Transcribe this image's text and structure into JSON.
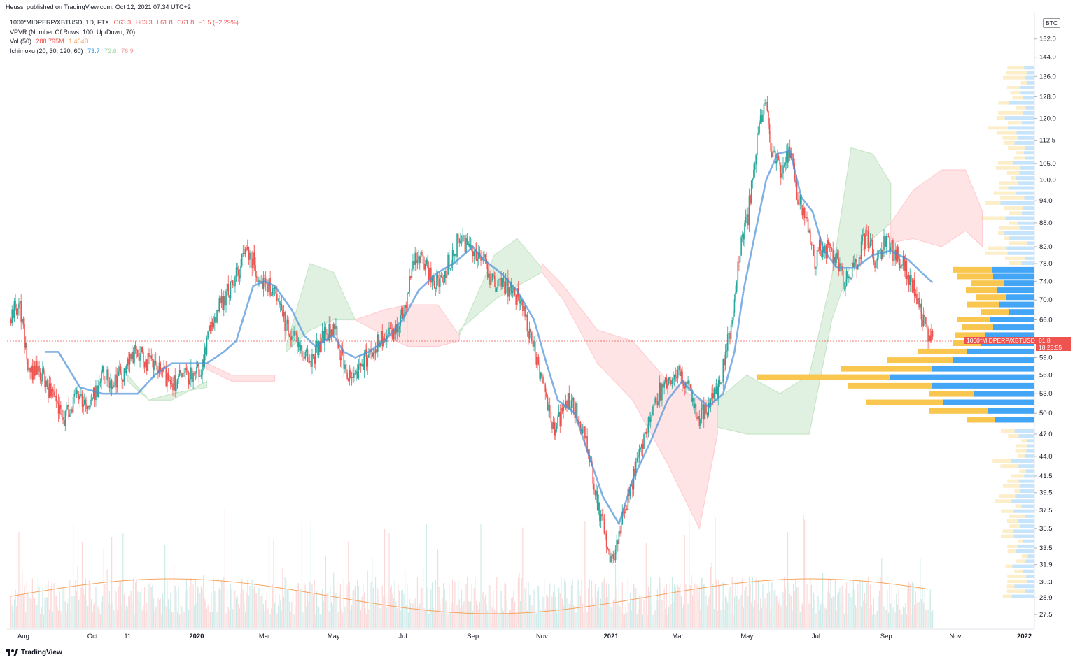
{
  "header": {
    "published": "Heussi published on TradingView.com, Oct 12, 2021 07:34 UTC+2",
    "legend": [
      {
        "label": "1000*MIDPERP/XBTUSD, 1D, FTX",
        "values": [
          "O63.3",
          "H63.3",
          "L61.8",
          "C61.8",
          "−1.5 (−2.29%)"
        ],
        "color": "#ef5350"
      },
      {
        "label": "VPVR (Number Of Rows, 100, Up/Down, 70)",
        "values": [],
        "color": "#131722"
      },
      {
        "label": "Vol (50)",
        "values": [
          "288.795M",
          "1.464B"
        ],
        "colors": [
          "#ef5350",
          "#f7a35c"
        ]
      },
      {
        "label": "Ichimoku (20, 30, 120, 60)",
        "values": [
          "73.7",
          "72.6",
          "76.9"
        ],
        "colors": [
          "#2196f3",
          "#a5d6a7",
          "#ef9a9a"
        ]
      }
    ]
  },
  "price_badge": {
    "symbol": "1000*MIDPERP/XBTUSD",
    "price": "61.8",
    "countdown": "18:25:55"
  },
  "currency_badge": "BTC",
  "branding": "TradingView",
  "colors": {
    "up": "#26a69a",
    "down": "#ef5350",
    "baseline": "#4a90d9",
    "cloud_bull": "#c8e6c9",
    "cloud_bear": "#ffcdd2",
    "vol_ma": "#f7a35c",
    "vp_up": "#42a5f5",
    "vp_down": "#f9c74f"
  },
  "chart_data": {
    "type": "candlestick",
    "scale": "log",
    "y_unit": "BTC",
    "ylim": [
      27,
      162
    ],
    "y_ticks": [
      "152.0",
      "144.0",
      "136.0",
      "128.0",
      "120.0",
      "112.5",
      "105.0",
      "100.0",
      "94.0",
      "88.0",
      "82.0",
      "78.0",
      "74.0",
      "70.0",
      "66.0",
      "59.0",
      "56.0",
      "53.0",
      "50.0",
      "47.0",
      "44.0",
      "41.5",
      "39.5",
      "37.5",
      "35.5",
      "33.5",
      "31.9",
      "30.3",
      "28.9",
      "27.5"
    ],
    "x_ticks": [
      "Aug",
      "Oct",
      "11",
      "2020",
      "Mar",
      "May",
      "Jul",
      "Sep",
      "Nov",
      "2021",
      "Mar",
      "May",
      "Jul",
      "Sep",
      "Nov",
      "2022"
    ],
    "last_price": 61.8,
    "close_path": [
      [
        "2019-07-20",
        66
      ],
      [
        "2019-07-28",
        70
      ],
      [
        "2019-08-06",
        56
      ],
      [
        "2019-08-14",
        57
      ],
      [
        "2019-08-25",
        53
      ],
      [
        "2019-09-05",
        49
      ],
      [
        "2019-09-18",
        53
      ],
      [
        "2019-09-28",
        51
      ],
      [
        "2019-10-10",
        56
      ],
      [
        "2019-10-20",
        55
      ],
      [
        "2019-10-30",
        57
      ],
      [
        "2019-11-08",
        60
      ],
      [
        "2019-11-20",
        58
      ],
      [
        "2019-12-03",
        56
      ],
      [
        "2019-12-12",
        55
      ],
      [
        "2019-12-25",
        56
      ],
      [
        "2020-01-05",
        57
      ],
      [
        "2020-01-15",
        66
      ],
      [
        "2020-01-25",
        70
      ],
      [
        "2020-02-05",
        75
      ],
      [
        "2020-02-15",
        82
      ],
      [
        "2020-02-25",
        75
      ],
      [
        "2020-03-08",
        72
      ],
      [
        "2020-03-20",
        65
      ],
      [
        "2020-03-30",
        62
      ],
      [
        "2020-04-10",
        58
      ],
      [
        "2020-04-22",
        63
      ],
      [
        "2020-05-02",
        64
      ],
      [
        "2020-05-12",
        56
      ],
      [
        "2020-05-22",
        57
      ],
      [
        "2020-06-02",
        60
      ],
      [
        "2020-06-12",
        62
      ],
      [
        "2020-06-22",
        63
      ],
      [
        "2020-07-02",
        68
      ],
      [
        "2020-07-12",
        80
      ],
      [
        "2020-07-22",
        77
      ],
      [
        "2020-08-01",
        73
      ],
      [
        "2020-08-12",
        79
      ],
      [
        "2020-08-20",
        84
      ],
      [
        "2020-08-30",
        82
      ],
      [
        "2020-09-10",
        79
      ],
      [
        "2020-09-20",
        73
      ],
      [
        "2020-10-01",
        73
      ],
      [
        "2020-10-12",
        70
      ],
      [
        "2020-10-22",
        62
      ],
      [
        "2020-11-02",
        55
      ],
      [
        "2020-11-12",
        47
      ],
      [
        "2020-11-22",
        52
      ],
      [
        "2020-12-02",
        50
      ],
      [
        "2020-12-12",
        45
      ],
      [
        "2020-12-22",
        37
      ],
      [
        "2021-01-01",
        32
      ],
      [
        "2021-01-10",
        36
      ],
      [
        "2021-01-20",
        41
      ],
      [
        "2021-02-01",
        48
      ],
      [
        "2021-02-12",
        53
      ],
      [
        "2021-02-20",
        55
      ],
      [
        "2021-03-01",
        56
      ],
      [
        "2021-03-08",
        55
      ],
      [
        "2021-03-18",
        49
      ],
      [
        "2021-03-28",
        51
      ],
      [
        "2021-04-08",
        55
      ],
      [
        "2021-04-18",
        66
      ],
      [
        "2021-04-25",
        82
      ],
      [
        "2021-05-02",
        90
      ],
      [
        "2021-05-10",
        112
      ],
      [
        "2021-05-18",
        128
      ],
      [
        "2021-05-22",
        110
      ],
      [
        "2021-05-30",
        103
      ],
      [
        "2021-06-08",
        108
      ],
      [
        "2021-06-15",
        95
      ],
      [
        "2021-06-22",
        89
      ],
      [
        "2021-06-30",
        78
      ],
      [
        "2021-07-05",
        82
      ],
      [
        "2021-07-15",
        81
      ],
      [
        "2021-07-25",
        74
      ],
      [
        "2021-08-05",
        78
      ],
      [
        "2021-08-15",
        85
      ],
      [
        "2021-08-22",
        79
      ],
      [
        "2021-09-01",
        83
      ],
      [
        "2021-09-10",
        80
      ],
      [
        "2021-09-20",
        76
      ],
      [
        "2021-09-28",
        70
      ],
      [
        "2021-10-05",
        65
      ],
      [
        "2021-10-12",
        61.8
      ]
    ],
    "tenkan_path": [
      [
        "2019-08-20",
        60
      ],
      [
        "2019-09-01",
        60
      ],
      [
        "2019-09-20",
        54
      ],
      [
        "2019-10-10",
        53
      ],
      [
        "2019-10-30",
        53
      ],
      [
        "2019-11-10",
        53
      ],
      [
        "2019-11-25",
        56
      ],
      [
        "2019-12-10",
        58
      ],
      [
        "2019-12-28",
        58
      ],
      [
        "2020-01-10",
        58
      ],
      [
        "2020-01-25",
        60
      ],
      [
        "2020-02-05",
        62
      ],
      [
        "2020-02-20",
        73
      ],
      [
        "2020-03-01",
        74
      ],
      [
        "2020-03-10",
        73
      ],
      [
        "2020-03-25",
        68
      ],
      [
        "2020-04-05",
        63
      ],
      [
        "2020-04-15",
        61
      ],
      [
        "2020-05-01",
        63
      ],
      [
        "2020-05-10",
        60
      ],
      [
        "2020-05-20",
        59
      ],
      [
        "2020-06-01",
        60
      ],
      [
        "2020-06-15",
        62
      ],
      [
        "2020-07-01",
        66
      ],
      [
        "2020-07-15",
        72
      ],
      [
        "2020-08-01",
        76
      ],
      [
        "2020-08-15",
        78
      ],
      [
        "2020-09-01",
        82
      ],
      [
        "2020-09-10",
        79
      ],
      [
        "2020-09-25",
        76
      ],
      [
        "2020-10-10",
        72
      ],
      [
        "2020-10-25",
        66
      ],
      [
        "2020-11-05",
        58
      ],
      [
        "2020-11-15",
        52
      ],
      [
        "2020-11-30",
        50
      ],
      [
        "2020-12-15",
        43
      ],
      [
        "2020-12-25",
        39
      ],
      [
        "2021-01-08",
        36
      ],
      [
        "2021-01-20",
        41
      ],
      [
        "2021-02-05",
        46
      ],
      [
        "2021-02-20",
        52
      ],
      [
        "2021-03-05",
        55
      ],
      [
        "2021-03-15",
        53
      ],
      [
        "2021-03-28",
        51
      ],
      [
        "2021-04-10",
        53
      ],
      [
        "2021-04-20",
        60
      ],
      [
        "2021-04-28",
        72
      ],
      [
        "2021-05-08",
        85
      ],
      [
        "2021-05-18",
        100
      ],
      [
        "2021-05-28",
        108
      ],
      [
        "2021-06-08",
        109
      ],
      [
        "2021-06-18",
        95
      ],
      [
        "2021-06-28",
        91
      ],
      [
        "2021-07-08",
        81
      ],
      [
        "2021-07-20",
        77
      ],
      [
        "2021-08-05",
        77
      ],
      [
        "2021-08-20",
        80
      ],
      [
        "2021-09-05",
        81
      ],
      [
        "2021-09-20",
        79
      ],
      [
        "2021-10-02",
        76
      ],
      [
        "2021-10-12",
        73.7
      ]
    ],
    "cloud_spans": [
      {
        "kind": "bull",
        "points": [
          [
            "2019-11-01",
            56,
            55
          ],
          [
            "2019-11-20",
            52,
            52
          ],
          [
            "2019-12-10",
            52,
            53
          ],
          [
            "2020-01-10",
            55,
            54
          ]
        ]
      },
      {
        "kind": "bear",
        "points": [
          [
            "2020-01-10",
            57,
            58
          ],
          [
            "2020-02-01",
            55,
            56
          ],
          [
            "2020-03-10",
            55,
            56
          ]
        ]
      },
      {
        "kind": "bull",
        "points": [
          [
            "2020-03-20",
            61,
            60
          ],
          [
            "2020-04-10",
            78,
            64
          ],
          [
            "2020-05-01",
            76,
            66
          ],
          [
            "2020-05-20",
            66,
            66
          ]
        ]
      },
      {
        "kind": "bear",
        "points": [
          [
            "2020-05-20",
            66,
            66
          ],
          [
            "2020-06-15",
            68,
            63
          ],
          [
            "2020-07-05",
            69,
            61
          ]
        ]
      },
      {
        "kind": "bear",
        "points": [
          [
            "2020-07-05",
            69,
            61
          ],
          [
            "2020-08-01",
            69,
            61
          ],
          [
            "2020-08-20",
            63,
            62
          ]
        ]
      },
      {
        "kind": "bull",
        "points": [
          [
            "2020-08-20",
            63,
            64
          ],
          [
            "2020-09-20",
            80,
            70
          ],
          [
            "2020-10-10",
            84,
            73
          ],
          [
            "2020-11-01",
            77,
            76
          ]
        ]
      },
      {
        "kind": "bear",
        "points": [
          [
            "2020-11-01",
            78,
            76
          ],
          [
            "2020-11-20",
            73,
            70
          ],
          [
            "2020-12-20",
            64,
            58
          ],
          [
            "2021-01-20",
            62,
            52
          ],
          [
            "2021-02-20",
            55,
            43
          ],
          [
            "2021-03-20",
            52,
            35.5
          ],
          [
            "2021-04-05",
            52,
            47
          ]
        ]
      },
      {
        "kind": "bull",
        "points": [
          [
            "2021-04-05",
            52,
            48
          ],
          [
            "2021-05-01",
            56,
            47
          ],
          [
            "2021-05-30",
            53,
            47
          ],
          [
            "2021-06-25",
            56,
            47
          ],
          [
            "2021-07-15",
            75,
            66
          ],
          [
            "2021-08-01",
            110,
            78
          ],
          [
            "2021-08-20",
            108,
            84
          ],
          [
            "2021-09-05",
            99,
            88
          ]
        ]
      },
      {
        "kind": "bear",
        "points": [
          [
            "2021-09-05",
            88,
            83
          ],
          [
            "2021-09-25",
            97,
            84
          ],
          [
            "2021-10-20",
            103,
            82
          ],
          [
            "2021-11-10",
            103,
            86
          ],
          [
            "2021-11-25",
            91,
            82
          ]
        ]
      }
    ],
    "volume_profile": {
      "rows": [
        {
          "price": 76.5,
          "up": 55,
          "down": 60
        },
        {
          "price": 75,
          "up": 52,
          "down": 58
        },
        {
          "price": 73.5,
          "up": 48,
          "down": 42
        },
        {
          "price": 72,
          "up": 45,
          "down": 52
        },
        {
          "price": 70.5,
          "up": 42,
          "down": 40
        },
        {
          "price": 69,
          "up": 45,
          "down": 50
        },
        {
          "price": 67.5,
          "up": 40,
          "down": 36
        },
        {
          "price": 66,
          "up": 48,
          "down": 62
        },
        {
          "price": 64.5,
          "up": 45,
          "down": 58
        },
        {
          "price": 63,
          "up": 42,
          "down": 70
        },
        {
          "price": 61.5,
          "up": 40,
          "down": 75
        },
        {
          "price": 60,
          "up": 70,
          "down": 95
        },
        {
          "price": 58.5,
          "up": 95,
          "down": 115
        },
        {
          "price": 57,
          "up": 130,
          "down": 145
        },
        {
          "price": 55.6,
          "up": 190,
          "down": 205
        },
        {
          "price": 54.2,
          "up": 120,
          "down": 145
        },
        {
          "price": 52.9,
          "up": 65,
          "down": 85
        },
        {
          "price": 51.6,
          "up": 110,
          "down": 130
        },
        {
          "price": 50.3,
          "up": 85,
          "down": 65
        },
        {
          "price": 49,
          "up": 40,
          "down": 55
        }
      ]
    }
  }
}
